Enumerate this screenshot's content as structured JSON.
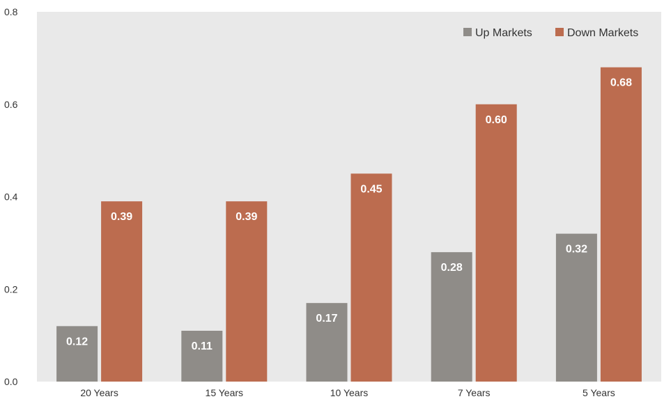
{
  "chart_data": {
    "type": "bar",
    "title": "",
    "xlabel": "",
    "ylabel": "",
    "categories": [
      "20 Years",
      "15 Years",
      "10 Years",
      "7 Years",
      "5 Years"
    ],
    "ylim": [
      0,
      0.8
    ],
    "y_ticks": [
      "0.0",
      "0.2",
      "0.4",
      "0.6",
      "0.8"
    ],
    "grid": false,
    "legend_position": "top-right",
    "series": [
      {
        "name": "Up Markets",
        "color": "#8f8c88",
        "values": [
          0.12,
          0.11,
          0.17,
          0.28,
          0.32
        ],
        "labels": [
          "0.12",
          "0.11",
          "0.17",
          "0.28",
          "0.32"
        ]
      },
      {
        "name": "Down Markets",
        "color": "#bc6c4f",
        "values": [
          0.39,
          0.39,
          0.45,
          0.6,
          0.68
        ],
        "labels": [
          "0.39",
          "0.39",
          "0.45",
          "0.60",
          "0.68"
        ]
      }
    ],
    "colors": {
      "plot_background": "#e9e9e9"
    }
  }
}
